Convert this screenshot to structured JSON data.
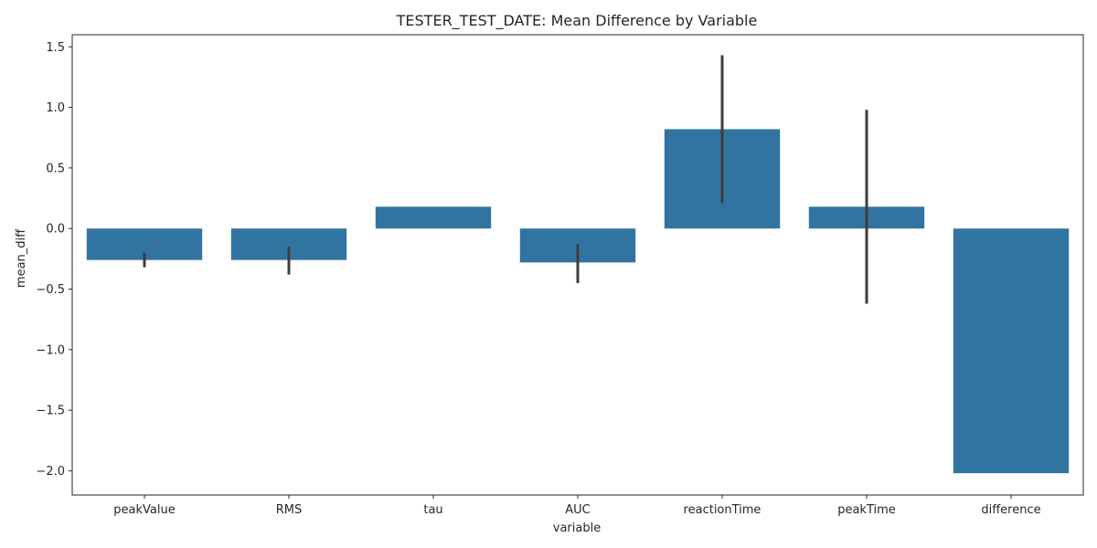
{
  "chart_data": {
    "type": "bar",
    "title": "TESTER_TEST_DATE: Mean Difference by Variable",
    "xlabel": "variable",
    "ylabel": "mean_diff",
    "categories": [
      "peakValue",
      "RMS",
      "tau",
      "AUC",
      "reactionTime",
      "peakTime",
      "difference"
    ],
    "values": [
      -0.26,
      -0.26,
      0.18,
      -0.28,
      0.82,
      0.18,
      -2.02
    ],
    "error_bars": [
      {
        "low": -0.32,
        "high": -0.2
      },
      {
        "low": -0.38,
        "high": -0.15
      },
      null,
      {
        "low": -0.45,
        "high": -0.13
      },
      {
        "low": 0.21,
        "high": 1.43
      },
      {
        "low": -0.62,
        "high": 0.98
      },
      null
    ],
    "yticks": [
      -2.0,
      -1.5,
      -1.0,
      -0.5,
      0.0,
      0.5,
      1.0,
      1.5
    ],
    "ytick_labels": [
      "−2.0",
      "−1.5",
      "−1.0",
      "−0.5",
      "0.0",
      "0.5",
      "1.0",
      "1.5"
    ],
    "ylim": [
      -2.2,
      1.6
    ],
    "grid": false,
    "colors": {
      "bar": "#3274a1",
      "error": "#3d3d3d",
      "axis": "#262626"
    }
  }
}
